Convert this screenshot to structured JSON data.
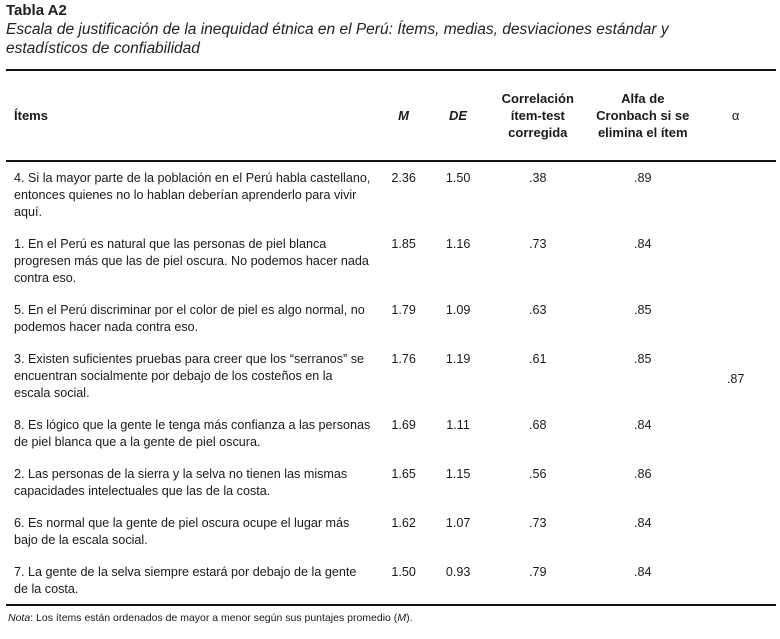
{
  "table_label": "Tabla A2",
  "caption": "Escala de justificación de la inequidad étnica en el Perú: Ítems, medias, desviaciones estándar y estadísticos de confiabilidad",
  "headers": {
    "items": "Ítems",
    "m": "M",
    "de": "DE",
    "corr": "Correlación ítem-test corregida",
    "alfa": "Alfa de Cronbach si se elimina el ítem",
    "alpha": "α"
  },
  "rows": [
    {
      "item": "4. Si la mayor parte de la población en el Perú habla castellano, entonces quienes no lo hablan deberían aprenderlo para vivir aquí.",
      "m": "2.36",
      "de": "1.50",
      "corr": ".38",
      "alfa": ".89"
    },
    {
      "item": "1. En el Perú es natural que las personas de piel blanca progresen más que las de piel oscura. No podemos hacer nada contra eso.",
      "m": "1.85",
      "de": "1.16",
      "corr": ".73",
      "alfa": ".84"
    },
    {
      "item": "5. En el Perú discriminar por el color de piel es algo normal, no podemos hacer nada contra eso.",
      "m": "1.79",
      "de": "1.09",
      "corr": ".63",
      "alfa": ".85"
    },
    {
      "item": "3. Existen suficientes pruebas para creer que los “serranos” se encuentran socialmente por debajo de los costeños en la escala social.",
      "m": "1.76",
      "de": "1.19",
      "corr": ".61",
      "alfa": ".85"
    },
    {
      "item": "8. Es lógico que la gente le tenga más confianza a las personas de piel blanca que a la gente de piel oscura.",
      "m": "1.69",
      "de": "1.11",
      "corr": ".68",
      "alfa": ".84"
    },
    {
      "item": "2. Las personas de la sierra y la selva no tienen las mismas capacidades intelectuales que las de la costa.",
      "m": "1.65",
      "de": "1.15",
      "corr": ".56",
      "alfa": ".86"
    },
    {
      "item": "6. Es normal que la gente de piel oscura ocupe el lugar más bajo de la escala social.",
      "m": "1.62",
      "de": "1.07",
      "corr": ".73",
      "alfa": ".84"
    },
    {
      "item": "7. La gente de la selva siempre estará por debajo de la gente de la costa.",
      "m": "1.50",
      "de": "0.93",
      "corr": ".79",
      "alfa": ".84"
    }
  ],
  "alpha_value": ".87",
  "note": {
    "label": "Nota",
    "text": ": Los ítems están ordenados de mayor a menor según sus puntajes promedio (",
    "m": "M",
    "end": ")."
  }
}
